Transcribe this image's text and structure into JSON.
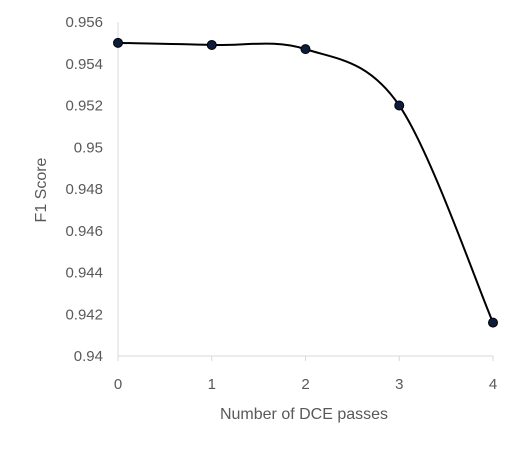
{
  "chart_data": {
    "type": "line",
    "title": "",
    "xlabel": "Number of DCE passes",
    "ylabel": "F1 Score",
    "x": [
      0,
      1,
      2,
      3,
      4
    ],
    "x_tick_labels": [
      "0",
      "1",
      "2",
      "3",
      "4"
    ],
    "xlim": [
      0,
      4
    ],
    "ylim": [
      0.94,
      0.956
    ],
    "y_ticks": [
      0.94,
      0.942,
      0.944,
      0.946,
      0.948,
      0.95,
      0.952,
      0.954,
      0.956
    ],
    "y_tick_labels": [
      "0.94",
      "0.942",
      "0.944",
      "0.946",
      "0.948",
      "0.95",
      "0.952",
      "0.954",
      "0.956"
    ],
    "series": [
      {
        "values": [
          0.955,
          0.9549,
          0.9547,
          0.952,
          0.9416
        ],
        "line_color": "#000000",
        "marker_fill": "#0d1b3d",
        "smoothed": true
      }
    ],
    "grid": false,
    "legend": "none",
    "axis_color": "#d9d9d9",
    "text_color": "#595959"
  }
}
